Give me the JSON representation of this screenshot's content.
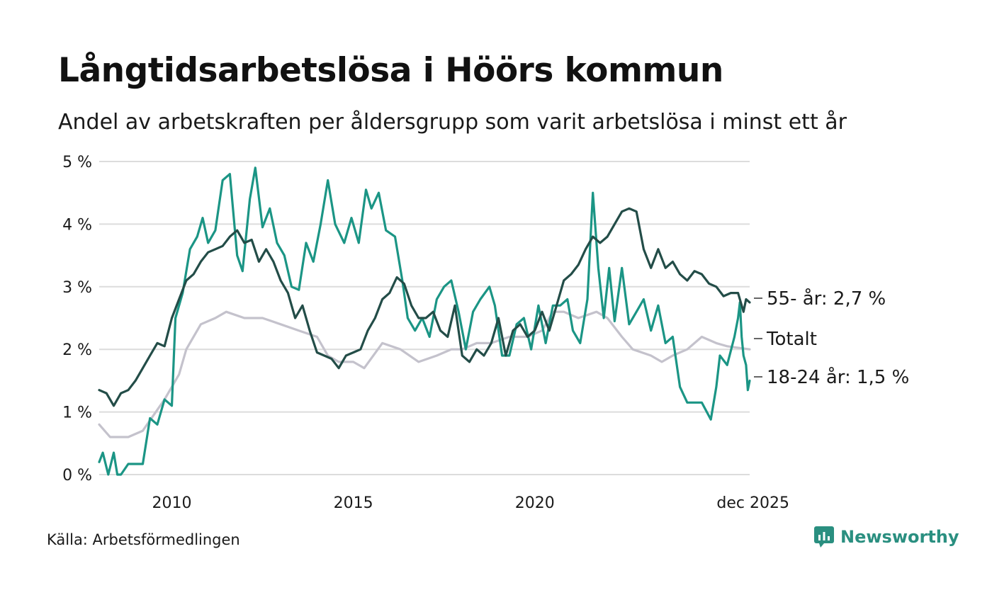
{
  "title": "Långtidsarbetslösa i Höörs kommun",
  "subtitle": "Andel av arbetskraften per åldersgrupp som varit arbetslösa i minst ett år",
  "source": "Källa: Arbetsförmedlingen",
  "brand": "Newsworthy",
  "colors": {
    "s55": "#234d48",
    "total": "#c4c2cc",
    "s1824": "#1b9585",
    "grid": "#dcdcdc",
    "brand": "#2a8f80"
  },
  "chart_data": {
    "type": "line",
    "title": "Långtidsarbetslösa i Höörs kommun",
    "xlabel": "",
    "ylabel": "",
    "xlim": [
      2008.0,
      2025.92
    ],
    "ylim": [
      0,
      5
    ],
    "yticks": [
      0,
      1,
      2,
      3,
      4,
      5
    ],
    "ytick_labels": [
      "0 %",
      "1 %",
      "2 %",
      "3 %",
      "4 %",
      "5 %"
    ],
    "xticks": [
      2010,
      2015,
      2020,
      2025.92
    ],
    "xtick_labels": [
      "2010",
      "2015",
      "2020",
      "dec 2025"
    ],
    "grid": true,
    "series": [
      {
        "name": "Totalt",
        "end_label": "Totalt",
        "points": [
          [
            2008.0,
            0.8
          ],
          [
            2008.3,
            0.6
          ],
          [
            2008.8,
            0.6
          ],
          [
            2009.2,
            0.7
          ],
          [
            2009.8,
            1.2
          ],
          [
            2010.2,
            1.6
          ],
          [
            2010.4,
            2.0
          ],
          [
            2010.8,
            2.4
          ],
          [
            2011.2,
            2.5
          ],
          [
            2011.5,
            2.6
          ],
          [
            2012.0,
            2.5
          ],
          [
            2012.5,
            2.5
          ],
          [
            2013.0,
            2.4
          ],
          [
            2013.5,
            2.3
          ],
          [
            2014.0,
            2.2
          ],
          [
            2014.3,
            1.9
          ],
          [
            2014.6,
            1.8
          ],
          [
            2015.0,
            1.8
          ],
          [
            2015.3,
            1.7
          ],
          [
            2015.8,
            2.1
          ],
          [
            2016.3,
            2.0
          ],
          [
            2016.8,
            1.8
          ],
          [
            2017.3,
            1.9
          ],
          [
            2017.7,
            2.0
          ],
          [
            2018.0,
            2.0
          ],
          [
            2018.4,
            2.1
          ],
          [
            2018.8,
            2.1
          ],
          [
            2019.3,
            2.2
          ],
          [
            2019.8,
            2.2
          ],
          [
            2020.2,
            2.3
          ],
          [
            2020.5,
            2.6
          ],
          [
            2020.8,
            2.6
          ],
          [
            2021.2,
            2.5
          ],
          [
            2021.7,
            2.6
          ],
          [
            2022.0,
            2.5
          ],
          [
            2022.4,
            2.2
          ],
          [
            2022.7,
            2.0
          ],
          [
            2023.2,
            1.9
          ],
          [
            2023.5,
            1.8
          ],
          [
            2023.8,
            1.9
          ],
          [
            2024.2,
            2.0
          ],
          [
            2024.6,
            2.2
          ],
          [
            2025.0,
            2.1
          ],
          [
            2025.3,
            2.05
          ],
          [
            2025.92,
            2.0
          ]
        ]
      },
      {
        "name": "18-24 år",
        "end_label": "18-24 år: 1,5 %",
        "points": [
          [
            2008.0,
            0.2
          ],
          [
            2008.1,
            0.35
          ],
          [
            2008.25,
            0.0
          ],
          [
            2008.4,
            0.35
          ],
          [
            2008.5,
            0.0
          ],
          [
            2008.6,
            0.0
          ],
          [
            2008.8,
            0.17
          ],
          [
            2009.0,
            0.17
          ],
          [
            2009.2,
            0.17
          ],
          [
            2009.4,
            0.9
          ],
          [
            2009.6,
            0.8
          ],
          [
            2009.8,
            1.2
          ],
          [
            2010.0,
            1.1
          ],
          [
            2010.1,
            2.5
          ],
          [
            2010.3,
            2.9
          ],
          [
            2010.5,
            3.6
          ],
          [
            2010.7,
            3.8
          ],
          [
            2010.85,
            4.1
          ],
          [
            2011.0,
            3.7
          ],
          [
            2011.2,
            3.9
          ],
          [
            2011.4,
            4.7
          ],
          [
            2011.6,
            4.8
          ],
          [
            2011.8,
            3.5
          ],
          [
            2011.95,
            3.25
          ],
          [
            2012.15,
            4.4
          ],
          [
            2012.3,
            4.9
          ],
          [
            2012.5,
            3.95
          ],
          [
            2012.7,
            4.25
          ],
          [
            2012.9,
            3.7
          ],
          [
            2013.1,
            3.5
          ],
          [
            2013.3,
            3.0
          ],
          [
            2013.5,
            2.95
          ],
          [
            2013.7,
            3.7
          ],
          [
            2013.9,
            3.4
          ],
          [
            2014.1,
            4.0
          ],
          [
            2014.3,
            4.7
          ],
          [
            2014.5,
            4.0
          ],
          [
            2014.75,
            3.7
          ],
          [
            2014.95,
            4.1
          ],
          [
            2015.15,
            3.7
          ],
          [
            2015.35,
            4.55
          ],
          [
            2015.5,
            4.25
          ],
          [
            2015.7,
            4.5
          ],
          [
            2015.9,
            3.9
          ],
          [
            2016.15,
            3.8
          ],
          [
            2016.35,
            3.1
          ],
          [
            2016.5,
            2.5
          ],
          [
            2016.7,
            2.3
          ],
          [
            2016.9,
            2.5
          ],
          [
            2017.1,
            2.2
          ],
          [
            2017.3,
            2.8
          ],
          [
            2017.5,
            3.0
          ],
          [
            2017.7,
            3.1
          ],
          [
            2017.9,
            2.6
          ],
          [
            2018.1,
            2.0
          ],
          [
            2018.3,
            2.6
          ],
          [
            2018.5,
            2.8
          ],
          [
            2018.75,
            3.0
          ],
          [
            2018.9,
            2.7
          ],
          [
            2019.1,
            1.9
          ],
          [
            2019.3,
            1.9
          ],
          [
            2019.5,
            2.4
          ],
          [
            2019.7,
            2.5
          ],
          [
            2019.9,
            2.0
          ],
          [
            2020.1,
            2.7
          ],
          [
            2020.3,
            2.1
          ],
          [
            2020.5,
            2.7
          ],
          [
            2020.7,
            2.7
          ],
          [
            2020.9,
            2.8
          ],
          [
            2021.05,
            2.3
          ],
          [
            2021.25,
            2.1
          ],
          [
            2021.45,
            2.8
          ],
          [
            2021.6,
            4.5
          ],
          [
            2021.75,
            3.3
          ],
          [
            2021.9,
            2.5
          ],
          [
            2022.05,
            3.3
          ],
          [
            2022.2,
            2.45
          ],
          [
            2022.4,
            3.3
          ],
          [
            2022.6,
            2.4
          ],
          [
            2022.8,
            2.6
          ],
          [
            2023.0,
            2.8
          ],
          [
            2023.2,
            2.3
          ],
          [
            2023.4,
            2.7
          ],
          [
            2023.6,
            2.1
          ],
          [
            2023.8,
            2.2
          ],
          [
            2024.0,
            1.4
          ],
          [
            2024.2,
            1.15
          ],
          [
            2024.4,
            1.15
          ],
          [
            2024.6,
            1.15
          ],
          [
            2024.85,
            0.88
          ],
          [
            2025.0,
            1.4
          ],
          [
            2025.1,
            1.9
          ],
          [
            2025.3,
            1.75
          ],
          [
            2025.5,
            2.2
          ],
          [
            2025.6,
            2.5
          ],
          [
            2025.65,
            2.75
          ],
          [
            2025.7,
            2.2
          ],
          [
            2025.75,
            1.9
          ],
          [
            2025.82,
            1.75
          ],
          [
            2025.87,
            1.35
          ],
          [
            2025.92,
            1.5
          ]
        ]
      },
      {
        "name": "55- år",
        "end_label": "55- år: 2,7 %",
        "points": [
          [
            2008.0,
            1.35
          ],
          [
            2008.2,
            1.3
          ],
          [
            2008.4,
            1.1
          ],
          [
            2008.6,
            1.3
          ],
          [
            2008.8,
            1.35
          ],
          [
            2009.0,
            1.5
          ],
          [
            2009.2,
            1.7
          ],
          [
            2009.4,
            1.9
          ],
          [
            2009.6,
            2.1
          ],
          [
            2009.8,
            2.05
          ],
          [
            2010.0,
            2.5
          ],
          [
            2010.2,
            2.8
          ],
          [
            2010.4,
            3.1
          ],
          [
            2010.6,
            3.2
          ],
          [
            2010.8,
            3.4
          ],
          [
            2011.0,
            3.55
          ],
          [
            2011.2,
            3.6
          ],
          [
            2011.4,
            3.65
          ],
          [
            2011.6,
            3.8
          ],
          [
            2011.8,
            3.9
          ],
          [
            2012.0,
            3.7
          ],
          [
            2012.2,
            3.75
          ],
          [
            2012.4,
            3.4
          ],
          [
            2012.6,
            3.6
          ],
          [
            2012.8,
            3.4
          ],
          [
            2013.0,
            3.1
          ],
          [
            2013.2,
            2.9
          ],
          [
            2013.4,
            2.5
          ],
          [
            2013.6,
            2.7
          ],
          [
            2013.8,
            2.3
          ],
          [
            2014.0,
            1.95
          ],
          [
            2014.2,
            1.9
          ],
          [
            2014.4,
            1.85
          ],
          [
            2014.6,
            1.7
          ],
          [
            2014.8,
            1.9
          ],
          [
            2015.0,
            1.95
          ],
          [
            2015.2,
            2.0
          ],
          [
            2015.4,
            2.3
          ],
          [
            2015.6,
            2.5
          ],
          [
            2015.8,
            2.8
          ],
          [
            2016.0,
            2.9
          ],
          [
            2016.2,
            3.15
          ],
          [
            2016.4,
            3.05
          ],
          [
            2016.6,
            2.7
          ],
          [
            2016.8,
            2.5
          ],
          [
            2017.0,
            2.5
          ],
          [
            2017.2,
            2.6
          ],
          [
            2017.4,
            2.3
          ],
          [
            2017.6,
            2.2
          ],
          [
            2017.8,
            2.7
          ],
          [
            2018.0,
            1.9
          ],
          [
            2018.2,
            1.8
          ],
          [
            2018.4,
            2.0
          ],
          [
            2018.6,
            1.9
          ],
          [
            2018.8,
            2.1
          ],
          [
            2019.0,
            2.5
          ],
          [
            2019.2,
            1.9
          ],
          [
            2019.4,
            2.3
          ],
          [
            2019.6,
            2.4
          ],
          [
            2019.8,
            2.2
          ],
          [
            2020.0,
            2.3
          ],
          [
            2020.2,
            2.6
          ],
          [
            2020.4,
            2.3
          ],
          [
            2020.6,
            2.7
          ],
          [
            2020.8,
            3.1
          ],
          [
            2021.0,
            3.2
          ],
          [
            2021.2,
            3.35
          ],
          [
            2021.4,
            3.6
          ],
          [
            2021.6,
            3.8
          ],
          [
            2021.8,
            3.7
          ],
          [
            2022.0,
            3.8
          ],
          [
            2022.2,
            4.0
          ],
          [
            2022.4,
            4.2
          ],
          [
            2022.6,
            4.25
          ],
          [
            2022.8,
            4.2
          ],
          [
            2023.0,
            3.6
          ],
          [
            2023.2,
            3.3
          ],
          [
            2023.4,
            3.6
          ],
          [
            2023.6,
            3.3
          ],
          [
            2023.8,
            3.4
          ],
          [
            2024.0,
            3.2
          ],
          [
            2024.2,
            3.1
          ],
          [
            2024.4,
            3.25
          ],
          [
            2024.6,
            3.2
          ],
          [
            2024.8,
            3.05
          ],
          [
            2025.0,
            3.0
          ],
          [
            2025.2,
            2.85
          ],
          [
            2025.4,
            2.9
          ],
          [
            2025.6,
            2.9
          ],
          [
            2025.75,
            2.6
          ],
          [
            2025.82,
            2.8
          ],
          [
            2025.92,
            2.75
          ]
        ]
      }
    ]
  }
}
